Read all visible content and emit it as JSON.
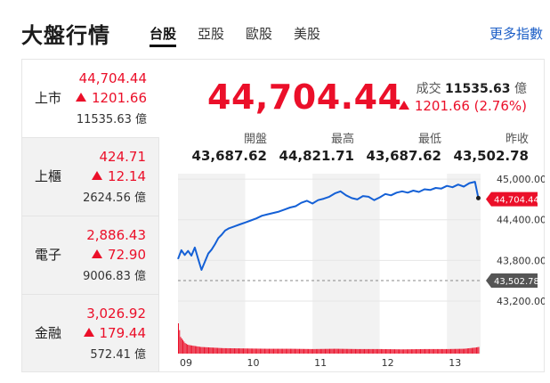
{
  "header": {
    "title": "大盤行情",
    "tabs": [
      {
        "label": "台股",
        "active": true
      },
      {
        "label": "亞股",
        "active": false
      },
      {
        "label": "歐股",
        "active": false
      },
      {
        "label": "美股",
        "active": false
      }
    ],
    "more_link": "更多指數"
  },
  "indices": [
    {
      "name": "上市",
      "price": "44,704.44",
      "change": "1201.66",
      "volume": "11535.63 億"
    },
    {
      "name": "上櫃",
      "price": "424.71",
      "change": "12.14",
      "volume": "2624.56 億"
    },
    {
      "name": "電子",
      "price": "2,886.43",
      "change": "72.90",
      "volume": "9006.83 億"
    },
    {
      "name": "金融",
      "price": "3,026.92",
      "change": "179.44",
      "volume": "572.41 億"
    }
  ],
  "summary": {
    "price": "44,704.44",
    "volume_label": "成交",
    "volume_value": "11535.63",
    "volume_unit": "億",
    "change": "1201.66 (2.76%)",
    "stats": [
      {
        "label": "開盤",
        "value": "43,687.62"
      },
      {
        "label": "最高",
        "value": "44,821.71"
      },
      {
        "label": "最低",
        "value": "43,687.62"
      },
      {
        "label": "昨收",
        "value": "43,502.78"
      }
    ]
  },
  "colors": {
    "up": "#eb0f29",
    "line": "#1460d6",
    "ref_tag": "#555555"
  },
  "chart_data": {
    "type": "line",
    "x_ticks": [
      "09",
      "10",
      "11",
      "12",
      "13"
    ],
    "y_ticks": [
      "45,000.00",
      "44,400.00",
      "43,800.00",
      "43,200.00"
    ],
    "y_tick_values": [
      45000,
      44400,
      43800,
      43200
    ],
    "ylim": [
      42950,
      45080
    ],
    "x_range_minutes": [
      0,
      270
    ],
    "last_label": "44,704.44",
    "last_value": 44704.44,
    "prev_close_label": "43,502.78",
    "prev_close": 43502.78,
    "series": [
      {
        "x": [
          0,
          3,
          6,
          9,
          12,
          15,
          18,
          21,
          24,
          27,
          30,
          33,
          36,
          39,
          42,
          45,
          50,
          55,
          60,
          65,
          70,
          75,
          80,
          85,
          90,
          95,
          100,
          105,
          110,
          115,
          120,
          125,
          130,
          135,
          140,
          145,
          150,
          155,
          160,
          165,
          170,
          175,
          180,
          185,
          190,
          195,
          200,
          205,
          210,
          215,
          220,
          225,
          230,
          235,
          240,
          245,
          250,
          255,
          260,
          265,
          268
        ],
        "y": [
          43820,
          43950,
          43880,
          43940,
          43870,
          43990,
          43820,
          43660,
          43780,
          43900,
          43960,
          44040,
          44130,
          44180,
          44240,
          44270,
          44300,
          44330,
          44360,
          44390,
          44420,
          44460,
          44480,
          44500,
          44520,
          44550,
          44580,
          44600,
          44650,
          44680,
          44640,
          44690,
          44710,
          44740,
          44790,
          44820,
          44760,
          44720,
          44700,
          44750,
          44740,
          44690,
          44730,
          44780,
          44760,
          44800,
          44820,
          44800,
          44830,
          44810,
          44850,
          44840,
          44870,
          44860,
          44900,
          44880,
          44920,
          44890,
          44940,
          44960,
          44720
        ]
      }
    ],
    "volume": {
      "x": [
        0,
        2,
        4,
        6,
        8,
        10,
        15,
        20,
        30,
        40,
        60,
        80,
        100,
        120,
        140,
        160,
        180,
        200,
        220,
        240,
        255,
        260,
        265,
        268
      ],
      "v": [
        1.0,
        0.55,
        0.45,
        0.35,
        0.3,
        0.28,
        0.25,
        0.22,
        0.2,
        0.18,
        0.17,
        0.16,
        0.16,
        0.15,
        0.16,
        0.15,
        0.15,
        0.14,
        0.15,
        0.15,
        0.16,
        0.18,
        0.2,
        0.22
      ]
    }
  }
}
